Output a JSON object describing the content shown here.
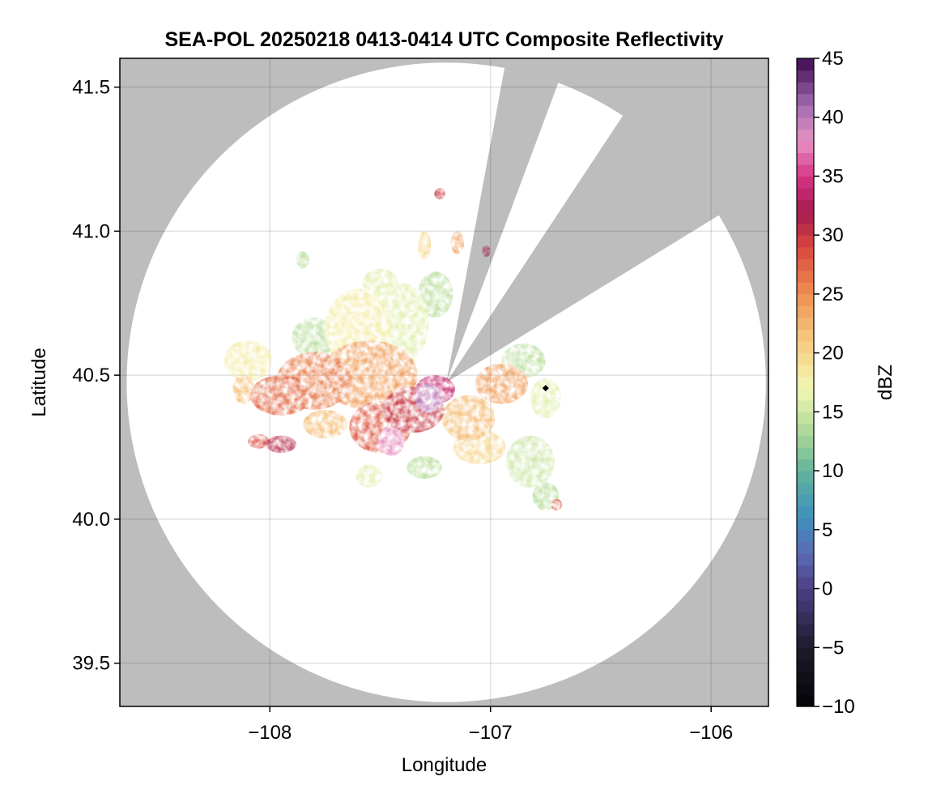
{
  "chart_data": {
    "type": "heatmap",
    "title": "SEA-POL 20250218 0413-0414 UTC Composite Reflectivity",
    "xlabel": "Longitude",
    "ylabel": "Latitude",
    "xlim": [
      -108.68,
      -105.74
    ],
    "ylim": [
      39.35,
      41.6
    ],
    "x_ticks": [
      -108,
      -107,
      -106
    ],
    "x_tick_labels": [
      "−108",
      "−107",
      "−106"
    ],
    "y_ticks": [
      39.5,
      40.0,
      40.5,
      41.0,
      41.5
    ],
    "y_tick_labels": [
      "39.5",
      "40.0",
      "40.5",
      "41.0",
      "41.5"
    ],
    "grid": true,
    "background_color": "#bdbdbd",
    "coverage_color": "#ffffff",
    "radar_site": {
      "lon": -107.2,
      "lat": 40.475
    },
    "range_lat_deg": 1.11,
    "blocked_sectors_deg": [
      [
        10.5,
        20.5
      ],
      [
        33.5,
        58.5
      ]
    ],
    "marker": {
      "lon": -106.75,
      "lat": 40.455,
      "color": "#000000"
    },
    "colorbar": {
      "label": "dBZ",
      "range": [
        -10,
        45
      ],
      "step": 1,
      "ticks": [
        -10,
        -5,
        0,
        5,
        10,
        15,
        20,
        25,
        30,
        35,
        40,
        45
      ],
      "tick_labels": [
        "−10",
        "−5",
        "0",
        "5",
        "10",
        "15",
        "20",
        "25",
        "30",
        "35",
        "40",
        "45"
      ],
      "colors": [
        {
          "v": -10,
          "c": "#050308"
        },
        {
          "v": -5,
          "c": "#1f1a2c"
        },
        {
          "v": 0,
          "c": "#4c3f86"
        },
        {
          "v": 3,
          "c": "#5b6bb5"
        },
        {
          "v": 6,
          "c": "#3f8fbd"
        },
        {
          "v": 10,
          "c": "#62b49c"
        },
        {
          "v": 13,
          "c": "#a6d597"
        },
        {
          "v": 17,
          "c": "#f3f7b4"
        },
        {
          "v": 21,
          "c": "#f6cb7e"
        },
        {
          "v": 25,
          "c": "#ef8f52"
        },
        {
          "v": 29,
          "c": "#d9473d"
        },
        {
          "v": 32,
          "c": "#a51a50"
        },
        {
          "v": 35,
          "c": "#d63585"
        },
        {
          "v": 38,
          "c": "#e892c4"
        },
        {
          "v": 41,
          "c": "#a46bb0"
        },
        {
          "v": 45,
          "c": "#3f0a4f"
        }
      ]
    },
    "echo_cells": [
      {
        "lon": -107.25,
        "lat": 40.45,
        "rx": 0.09,
        "ry": 0.05,
        "dbz": 34
      },
      {
        "lon": -107.28,
        "lat": 40.42,
        "rx": 0.06,
        "ry": 0.05,
        "dbz": 40
      },
      {
        "lon": -107.45,
        "lat": 40.27,
        "rx": 0.06,
        "ry": 0.05,
        "dbz": 38
      },
      {
        "lon": -107.5,
        "lat": 40.32,
        "rx": 0.14,
        "ry": 0.09,
        "dbz": 28
      },
      {
        "lon": -107.35,
        "lat": 40.38,
        "rx": 0.14,
        "ry": 0.08,
        "dbz": 30
      },
      {
        "lon": -107.55,
        "lat": 40.5,
        "rx": 0.22,
        "ry": 0.12,
        "dbz": 24
      },
      {
        "lon": -107.8,
        "lat": 40.48,
        "rx": 0.17,
        "ry": 0.1,
        "dbz": 26
      },
      {
        "lon": -107.95,
        "lat": 40.43,
        "rx": 0.14,
        "ry": 0.07,
        "dbz": 27
      },
      {
        "lon": -107.75,
        "lat": 40.33,
        "rx": 0.1,
        "ry": 0.05,
        "dbz": 22
      },
      {
        "lon": -107.95,
        "lat": 40.26,
        "rx": 0.07,
        "ry": 0.03,
        "dbz": 31
      },
      {
        "lon": -108.05,
        "lat": 40.27,
        "rx": 0.05,
        "ry": 0.025,
        "dbz": 29
      },
      {
        "lon": -107.6,
        "lat": 40.66,
        "rx": 0.15,
        "ry": 0.14,
        "dbz": 18
      },
      {
        "lon": -107.4,
        "lat": 40.68,
        "rx": 0.12,
        "ry": 0.14,
        "dbz": 16
      },
      {
        "lon": -107.25,
        "lat": 40.78,
        "rx": 0.08,
        "ry": 0.08,
        "dbz": 14
      },
      {
        "lon": -107.5,
        "lat": 40.82,
        "rx": 0.08,
        "ry": 0.05,
        "dbz": 16
      },
      {
        "lon": -107.8,
        "lat": 40.63,
        "rx": 0.1,
        "ry": 0.07,
        "dbz": 14
      },
      {
        "lon": -108.1,
        "lat": 40.55,
        "rx": 0.11,
        "ry": 0.07,
        "dbz": 18
      },
      {
        "lon": -107.1,
        "lat": 40.35,
        "rx": 0.12,
        "ry": 0.08,
        "dbz": 22
      },
      {
        "lon": -107.05,
        "lat": 40.25,
        "rx": 0.12,
        "ry": 0.06,
        "dbz": 20
      },
      {
        "lon": -106.95,
        "lat": 40.47,
        "rx": 0.12,
        "ry": 0.07,
        "dbz": 24
      },
      {
        "lon": -106.85,
        "lat": 40.55,
        "rx": 0.1,
        "ry": 0.06,
        "dbz": 14
      },
      {
        "lon": -106.75,
        "lat": 40.42,
        "rx": 0.07,
        "ry": 0.07,
        "dbz": 16
      },
      {
        "lon": -106.82,
        "lat": 40.2,
        "rx": 0.11,
        "ry": 0.09,
        "dbz": 15
      },
      {
        "lon": -106.75,
        "lat": 40.08,
        "rx": 0.06,
        "ry": 0.05,
        "dbz": 14
      },
      {
        "lon": -106.7,
        "lat": 40.05,
        "rx": 0.025,
        "ry": 0.02,
        "dbz": 28
      },
      {
        "lon": -107.3,
        "lat": 40.18,
        "rx": 0.08,
        "ry": 0.04,
        "dbz": 14
      },
      {
        "lon": -107.55,
        "lat": 40.15,
        "rx": 0.06,
        "ry": 0.04,
        "dbz": 16
      },
      {
        "lon": -107.23,
        "lat": 41.13,
        "rx": 0.025,
        "ry": 0.02,
        "dbz": 30
      },
      {
        "lon": -107.15,
        "lat": 40.96,
        "rx": 0.03,
        "ry": 0.04,
        "dbz": 24
      },
      {
        "lon": -107.3,
        "lat": 40.95,
        "rx": 0.03,
        "ry": 0.05,
        "dbz": 20
      },
      {
        "lon": -107.02,
        "lat": 40.93,
        "rx": 0.02,
        "ry": 0.02,
        "dbz": 32
      },
      {
        "lon": -107.85,
        "lat": 40.9,
        "rx": 0.03,
        "ry": 0.03,
        "dbz": 14
      },
      {
        "lon": -108.12,
        "lat": 40.45,
        "rx": 0.05,
        "ry": 0.05,
        "dbz": 22
      }
    ]
  }
}
